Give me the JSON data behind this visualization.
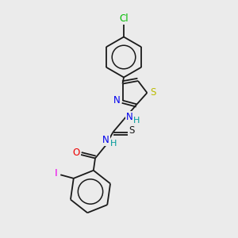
{
  "background_color": "#ebebeb",
  "bond_color": "#1a1a1a",
  "atom_colors": {
    "Cl": "#00bb00",
    "N": "#0000ee",
    "S_thiazole": "#bbbb00",
    "S_thioamide": "#1a1a1a",
    "O": "#ee0000",
    "I": "#ee00ee",
    "H": "#009999",
    "C": "#1a1a1a"
  },
  "figsize": [
    3.0,
    3.0
  ],
  "dpi": 100
}
